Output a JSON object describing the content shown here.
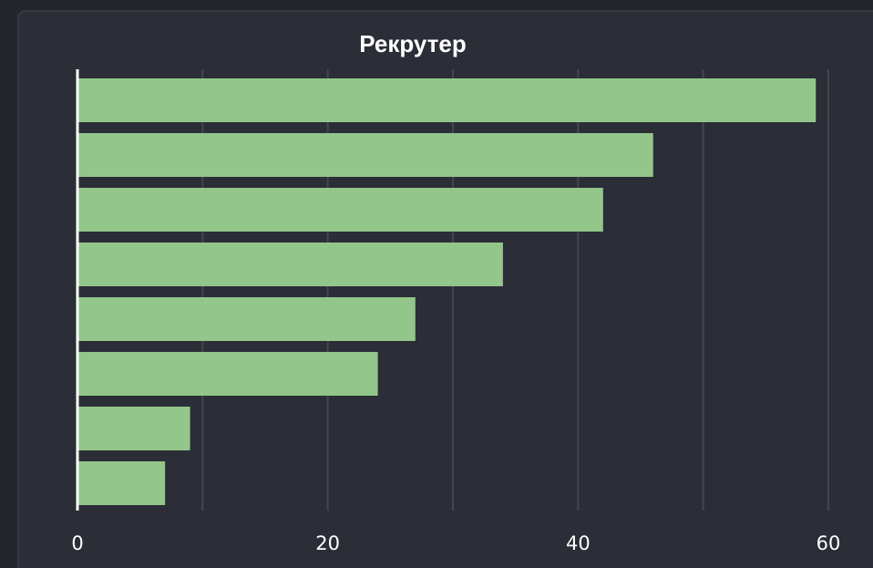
{
  "chart_data": {
    "type": "barh",
    "title": "Рекрутер",
    "categories": [
      null,
      null,
      null,
      null,
      null,
      null,
      null,
      null
    ],
    "values": [
      59,
      46,
      42,
      34,
      27,
      24,
      9,
      7
    ],
    "color": "#93c68a",
    "xlim": [
      0,
      60
    ],
    "xticks": [
      0,
      20,
      40,
      60
    ],
    "x_minor_ticks": [
      10,
      30,
      50
    ],
    "grid": true
  }
}
